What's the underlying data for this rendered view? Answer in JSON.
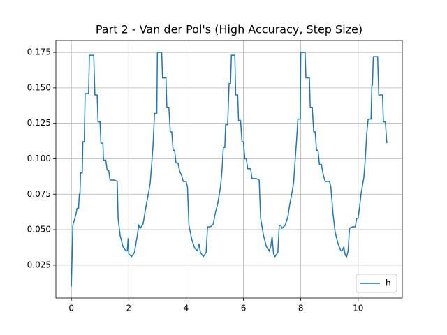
{
  "chart_data": {
    "type": "line",
    "title": "Part 2 - Van der Pol's (High Accuracy, Step Size)",
    "x": [
      0,
      0.05,
      0.15,
      0.2,
      0.25,
      0.28,
      0.3,
      0.32,
      0.38,
      0.4,
      0.45,
      0.48,
      0.6,
      0.63,
      0.78,
      0.82,
      0.9,
      0.93,
      1.0,
      1.03,
      1.1,
      1.12,
      1.2,
      1.25,
      1.3,
      1.35,
      1.5,
      1.6,
      1.63,
      1.7,
      1.8,
      1.9,
      1.95,
      1.98,
      2.0,
      2.1,
      2.2,
      2.3,
      2.35,
      2.4,
      2.5,
      2.55,
      2.6,
      2.7,
      2.75,
      2.8,
      2.85,
      2.9,
      2.98,
      3.0,
      3.15,
      3.18,
      3.3,
      3.33,
      3.4,
      3.45,
      3.5,
      3.55,
      3.6,
      3.65,
      3.72,
      3.78,
      3.85,
      3.9,
      4.0,
      4.05,
      4.1,
      4.2,
      4.3,
      4.4,
      4.45,
      4.5,
      4.6,
      4.7,
      4.75,
      4.85,
      4.95,
      5.0,
      5.1,
      5.2,
      5.25,
      5.3,
      5.35,
      5.38,
      5.45,
      5.5,
      5.55,
      5.58,
      5.7,
      5.73,
      5.8,
      5.83,
      5.9,
      5.95,
      6.0,
      6.05,
      6.1,
      6.15,
      6.25,
      6.3,
      6.45,
      6.55,
      6.6,
      6.7,
      6.8,
      6.9,
      6.95,
      7.0,
      7.05,
      7.1,
      7.2,
      7.25,
      7.3,
      7.35,
      7.45,
      7.55,
      7.6,
      7.7,
      7.75,
      7.8,
      7.85,
      7.9,
      7.98,
      8.0,
      8.15,
      8.18,
      8.3,
      8.33,
      8.4,
      8.45,
      8.5,
      8.55,
      8.6,
      8.65,
      8.72,
      8.78,
      8.85,
      9.0,
      9.05,
      9.12,
      9.2,
      9.3,
      9.4,
      9.45,
      9.5,
      9.55,
      9.6,
      9.65,
      9.7,
      9.8,
      9.9,
      9.95,
      10.0,
      10.05,
      10.1,
      10.2,
      10.25,
      10.3,
      10.35,
      10.45,
      10.48,
      10.5,
      10.53,
      10.68,
      10.72,
      10.85,
      10.88,
      10.95,
      11.0
    ],
    "series": [
      {
        "name": "h",
        "color": "#1f77b4",
        "values": [
          0.01,
          0.053,
          0.06,
          0.065,
          0.065,
          0.075,
          0.075,
          0.09,
          0.09,
          0.112,
          0.112,
          0.146,
          0.146,
          0.173,
          0.173,
          0.145,
          0.145,
          0.126,
          0.126,
          0.111,
          0.111,
          0.099,
          0.099,
          0.092,
          0.092,
          0.085,
          0.085,
          0.084,
          0.058,
          0.046,
          0.038,
          0.035,
          0.035,
          0.044,
          0.033,
          0.031,
          0.034,
          0.046,
          0.053,
          0.051,
          0.054,
          0.06,
          0.066,
          0.077,
          0.083,
          0.096,
          0.11,
          0.132,
          0.132,
          0.175,
          0.175,
          0.157,
          0.157,
          0.136,
          0.136,
          0.119,
          0.119,
          0.106,
          0.106,
          0.097,
          0.097,
          0.091,
          0.088,
          0.084,
          0.084,
          0.08,
          0.053,
          0.043,
          0.037,
          0.035,
          0.04,
          0.034,
          0.031,
          0.034,
          0.052,
          0.052,
          0.054,
          0.06,
          0.068,
          0.08,
          0.091,
          0.108,
          0.108,
          0.124,
          0.124,
          0.153,
          0.153,
          0.173,
          0.173,
          0.145,
          0.145,
          0.127,
          0.127,
          0.112,
          0.112,
          0.1,
          0.1,
          0.093,
          0.093,
          0.086,
          0.086,
          0.085,
          0.058,
          0.046,
          0.038,
          0.035,
          0.038,
          0.045,
          0.033,
          0.031,
          0.034,
          0.053,
          0.053,
          0.051,
          0.053,
          0.059,
          0.066,
          0.077,
          0.083,
          0.098,
          0.112,
          0.128,
          0.128,
          0.175,
          0.175,
          0.157,
          0.157,
          0.136,
          0.136,
          0.119,
          0.119,
          0.106,
          0.106,
          0.096,
          0.096,
          0.089,
          0.084,
          0.084,
          0.08,
          0.062,
          0.048,
          0.04,
          0.035,
          0.035,
          0.038,
          0.032,
          0.031,
          0.035,
          0.051,
          0.052,
          0.052,
          0.058,
          0.058,
          0.066,
          0.075,
          0.087,
          0.1,
          0.118,
          0.128,
          0.128,
          0.152,
          0.152,
          0.172,
          0.172,
          0.145,
          0.145,
          0.126,
          0.126,
          0.111
        ]
      }
    ],
    "xlim": [
      -0.54,
      11.54
    ],
    "ylim": [
      0.0018,
      0.1834
    ],
    "xticks": [
      0,
      2,
      4,
      6,
      8,
      10
    ],
    "yticks": [
      0.025,
      {
        "value": 0.05,
        "label": "0.050"
      },
      0.075,
      {
        "value": 0.1,
        "label": "0.100"
      },
      0.125,
      {
        "value": 0.15,
        "label": "0.150"
      },
      0.175
    ],
    "grid": true,
    "legend": "lower right"
  }
}
